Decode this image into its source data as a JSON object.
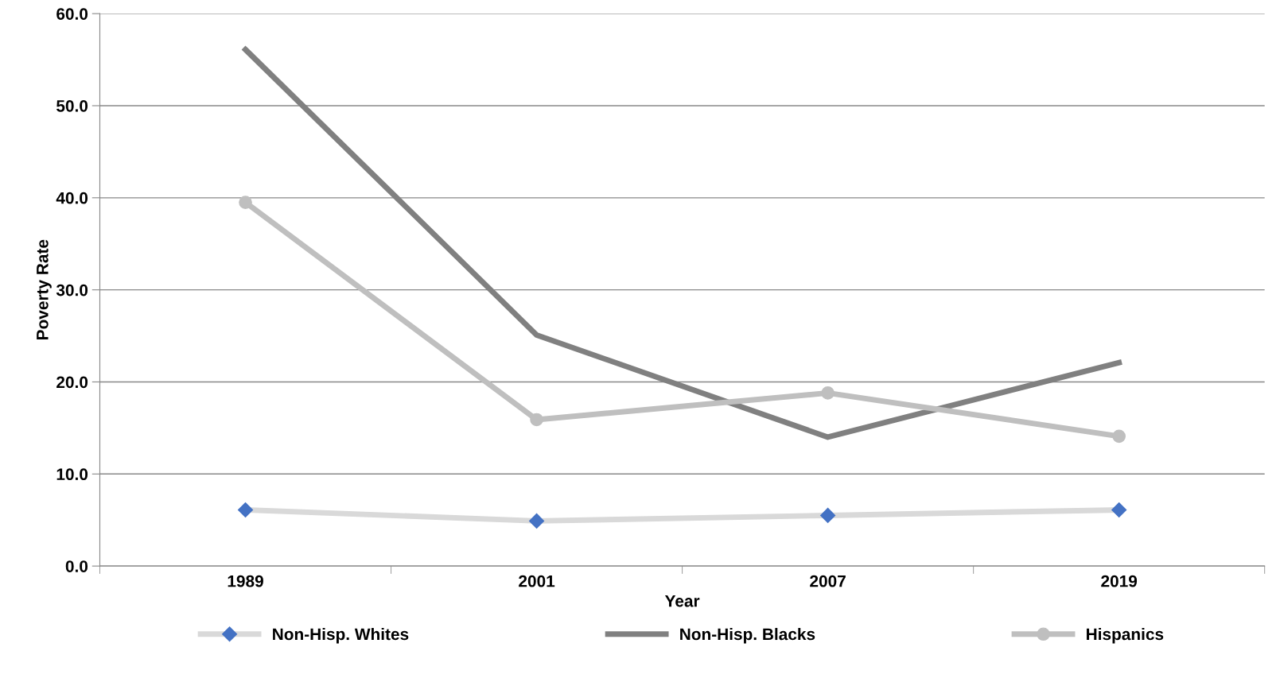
{
  "chart_data": {
    "type": "line",
    "xlabel": "Year",
    "ylabel": "Poverty Rate",
    "categories": [
      "1989",
      "2001",
      "2007",
      "2019"
    ],
    "series": [
      {
        "name": "Non-Hisp. Whites",
        "color": "#d9d9d9",
        "marker": "diamond",
        "colors": [
          "#4472c4",
          "#4472c4",
          "#4472c4",
          "#4472c4"
        ],
        "values": [
          6.1,
          4.9,
          5.5,
          6.1
        ]
      },
      {
        "name": "Non-Hisp. Blacks",
        "color": "#808080",
        "marker": "none",
        "values": [
          56.1,
          25.1,
          14.0,
          22.1
        ]
      },
      {
        "name": "Hispanics",
        "color": "#bfbfbf",
        "marker": "circle",
        "values": [
          39.5,
          15.9,
          18.8,
          14.1
        ]
      }
    ],
    "ylim": [
      0,
      60
    ],
    "yticks": [
      {
        "value": 0,
        "label": "0.0"
      },
      {
        "value": 10,
        "label": "10.0"
      },
      {
        "value": 20,
        "label": "20.0"
      },
      {
        "value": 30,
        "label": "30.0"
      },
      {
        "value": 40,
        "label": "40.0"
      },
      {
        "value": 50,
        "label": "50.0"
      },
      {
        "value": 60,
        "label": "60.0"
      }
    ],
    "grid": "y",
    "legend": "bottom",
    "line_style": "solid"
  }
}
